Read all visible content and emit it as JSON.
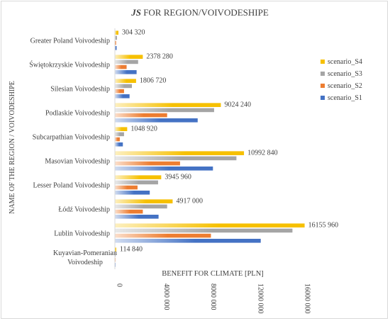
{
  "chart_data": {
    "type": "bar",
    "orientation": "horizontal",
    "title_prefix": "JS",
    "title_suffix": " FOR REGION/VOIVODESHIPE",
    "xlabel": "BENEFIT FOR CLIMATE [PLN]",
    "ylabel": "NAME OF THE REGION / VOIVODESHIPE",
    "xlim": [
      0,
      16000000
    ],
    "xticks": [
      0,
      4000000,
      8000000,
      12000000,
      16000000
    ],
    "xtick_labels": [
      "0",
      "4000 000",
      "8000 000",
      "12000 000",
      "16000 000"
    ],
    "legend_position": "right",
    "categories": [
      "Greater Poland Voivodeship",
      "Świętokrzyskie Voivodeship",
      "Silesian Voivodeship",
      "Podlaskie Voivodeship",
      "Subcarpathian Voivodeship",
      "Masovian Voivodeship",
      "Lesser Poland Voivodeship",
      "Łódź Voivodeship",
      "Lublin Voivodeship",
      "Kuyavian-Pomeranian Voivodeship"
    ],
    "category_display": [
      [
        "Greater Poland Voivodeship"
      ],
      [
        "Świętokrzyskie Voivodeship"
      ],
      [
        "Silesian Voivodeship"
      ],
      [
        "Podlaskie Voivodeship"
      ],
      [
        "Subcarpathian Voivodeship"
      ],
      [
        "Masovian Voivodeship"
      ],
      [
        "Lesser Poland Voivodeship"
      ],
      [
        "Łódź Voivodeship"
      ],
      [
        "Lublin Voivodeship"
      ],
      [
        "Kuyavian-Pomeranian",
        "Voivodeship"
      ]
    ],
    "data_labels": [
      "304 320",
      "2378 280",
      "1806 720",
      "9024 240",
      "1048 920",
      "10992 840",
      "3945 960",
      "4917 000",
      "16155 960",
      "114 840"
    ],
    "series": [
      {
        "name": "scenario_S4",
        "color": "#f6c000",
        "values": [
          304320,
          2378280,
          1806720,
          9024240,
          1048920,
          10992840,
          3945960,
          4917000,
          16155960,
          114840
        ]
      },
      {
        "name": "scenario_S3",
        "color": "#a5a5a5",
        "values": [
          180000,
          1980000,
          1450000,
          8450000,
          780000,
          10350000,
          3680000,
          4450000,
          15120000,
          60000
        ]
      },
      {
        "name": "scenario_S2",
        "color": "#ed7d31",
        "values": [
          100000,
          1000000,
          780000,
          4450000,
          420000,
          5550000,
          1930000,
          2380000,
          8180000,
          30000
        ]
      },
      {
        "name": "scenario_S1",
        "color": "#4472c4",
        "values": [
          150000,
          1850000,
          1250000,
          7050000,
          680000,
          8350000,
          2970000,
          3720000,
          12420000,
          50000
        ]
      }
    ]
  }
}
